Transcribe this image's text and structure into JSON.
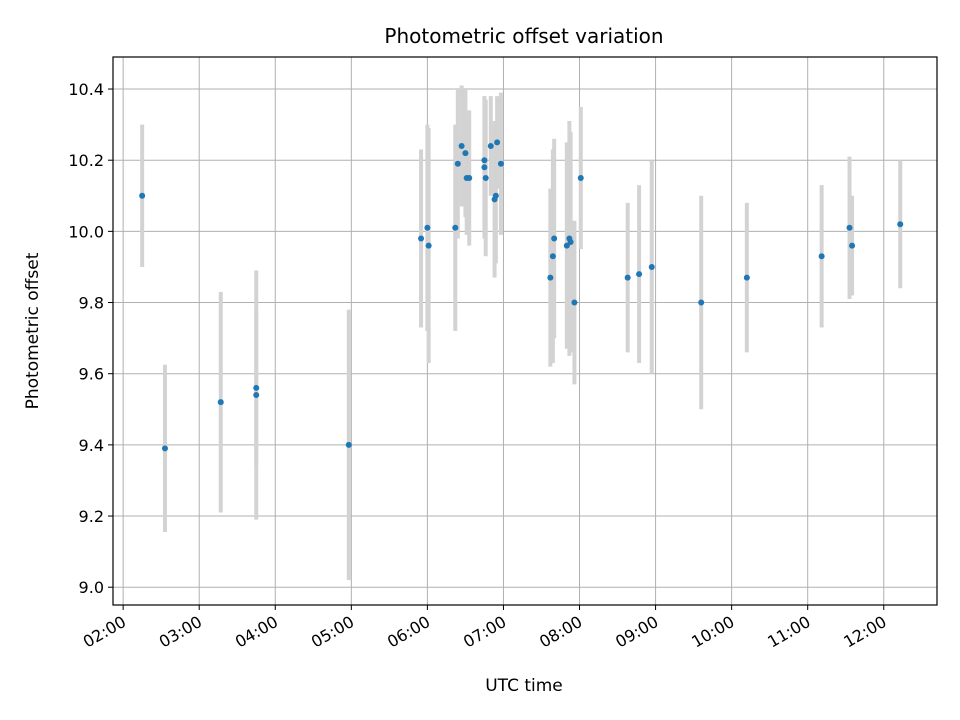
{
  "chart_data": {
    "type": "scatter",
    "title": "Photometric offset variation",
    "xlabel": "UTC time",
    "ylabel": "Photometric offset",
    "xlim": [
      "01:52",
      "12:42"
    ],
    "ylim": [
      8.95,
      10.49
    ],
    "x_ticks": [
      "02:00",
      "03:00",
      "04:00",
      "05:00",
      "06:00",
      "07:00",
      "08:00",
      "09:00",
      "10:00",
      "11:00",
      "12:00"
    ],
    "y_ticks": [
      9.0,
      9.2,
      9.4,
      9.6,
      9.8,
      10.0,
      10.2,
      10.4
    ],
    "grid": true,
    "marker_color": "#1f77b4",
    "errorbar_color": "#d3d3d3",
    "points": [
      {
        "time": "02:15",
        "y": 10.1,
        "err": 0.2
      },
      {
        "time": "02:33",
        "y": 9.39,
        "err": 0.235
      },
      {
        "time": "03:17",
        "y": 9.52,
        "err": 0.31
      },
      {
        "time": "03:45",
        "y": 9.56,
        "err": 0.22
      },
      {
        "time": "03:45",
        "y": 9.54,
        "err": 0.35
      },
      {
        "time": "04:58",
        "y": 9.4,
        "err": 0.38
      },
      {
        "time": "05:55",
        "y": 9.98,
        "err": 0.25
      },
      {
        "time": "06:00",
        "y": 10.01,
        "err": 0.29
      },
      {
        "time": "06:01",
        "y": 9.96,
        "err": 0.33
      },
      {
        "time": "06:22",
        "y": 10.01,
        "err": 0.29
      },
      {
        "time": "06:24",
        "y": 10.19,
        "err": 0.21
      },
      {
        "time": "06:27",
        "y": 10.24,
        "err": 0.17
      },
      {
        "time": "06:30",
        "y": 10.22,
        "err": 0.18
      },
      {
        "time": "06:31",
        "y": 10.15,
        "err": 0.16
      },
      {
        "time": "06:33",
        "y": 10.15,
        "err": 0.19
      },
      {
        "time": "06:45",
        "y": 10.2,
        "err": 0.18
      },
      {
        "time": "06:45",
        "y": 10.18,
        "err": 0.2
      },
      {
        "time": "06:46",
        "y": 10.15,
        "err": 0.22
      },
      {
        "time": "06:50",
        "y": 10.24,
        "err": 0.14
      },
      {
        "time": "06:53",
        "y": 10.09,
        "err": 0.22
      },
      {
        "time": "06:54",
        "y": 10.1,
        "err": 0.19
      },
      {
        "time": "06:55",
        "y": 10.25,
        "err": 0.13
      },
      {
        "time": "06:58",
        "y": 10.19,
        "err": 0.2
      },
      {
        "time": "07:37",
        "y": 9.87,
        "err": 0.25
      },
      {
        "time": "07:39",
        "y": 9.93,
        "err": 0.3
      },
      {
        "time": "07:40",
        "y": 9.98,
        "err": 0.28
      },
      {
        "time": "07:50",
        "y": 9.96,
        "err": 0.29
      },
      {
        "time": "07:52",
        "y": 9.98,
        "err": 0.33
      },
      {
        "time": "07:53",
        "y": 9.97,
        "err": 0.31
      },
      {
        "time": "07:56",
        "y": 9.8,
        "err": 0.23
      },
      {
        "time": "08:01",
        "y": 10.15,
        "err": 0.2
      },
      {
        "time": "08:38",
        "y": 9.87,
        "err": 0.21
      },
      {
        "time": "08:47",
        "y": 9.88,
        "err": 0.25
      },
      {
        "time": "08:57",
        "y": 9.9,
        "err": 0.3
      },
      {
        "time": "09:36",
        "y": 9.8,
        "err": 0.3
      },
      {
        "time": "10:12",
        "y": 9.87,
        "err": 0.21
      },
      {
        "time": "11:11",
        "y": 9.93,
        "err": 0.2
      },
      {
        "time": "11:33",
        "y": 10.01,
        "err": 0.2
      },
      {
        "time": "11:35",
        "y": 9.96,
        "err": 0.14
      },
      {
        "time": "12:13",
        "y": 10.02,
        "err": 0.18
      }
    ]
  }
}
